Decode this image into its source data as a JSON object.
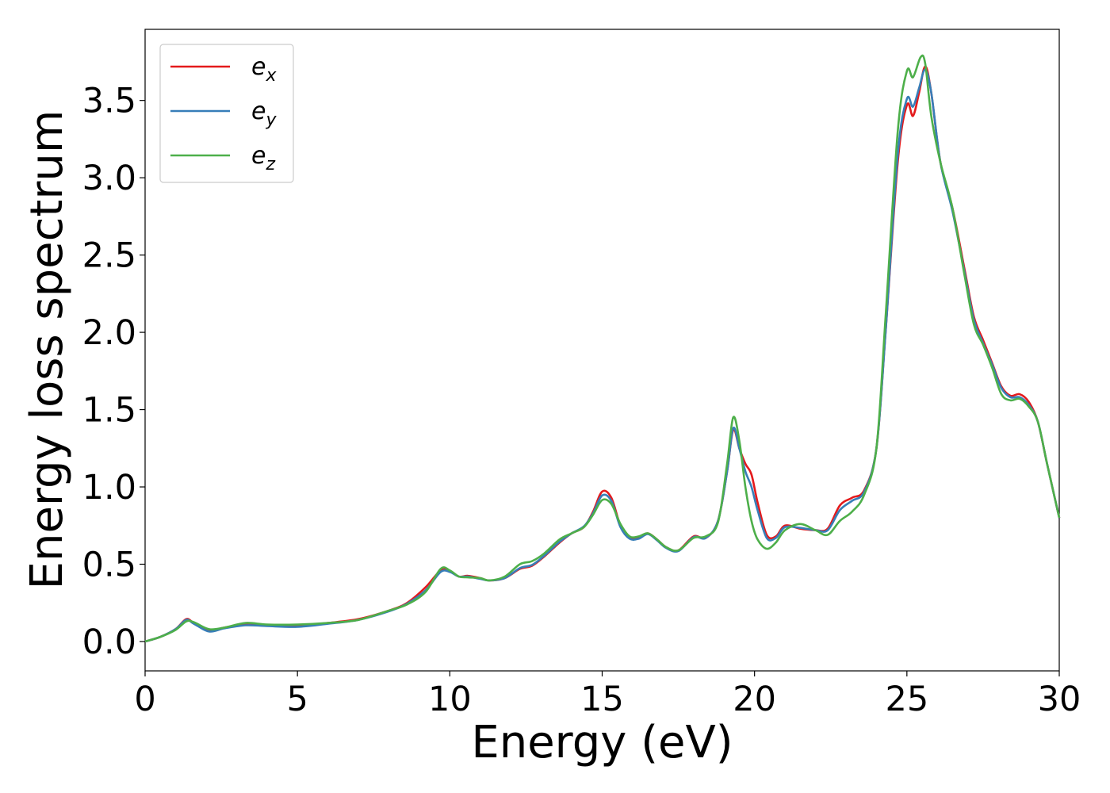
{
  "chart_data": {
    "type": "line",
    "title": "",
    "xlabel": "Energy (eV)",
    "ylabel": "Energy loss spectrum",
    "xlim": [
      0,
      30
    ],
    "ylim": [
      -0.19,
      3.96
    ],
    "xticks": [
      0,
      5,
      10,
      15,
      20,
      25,
      30
    ],
    "xtick_labels": [
      "0",
      "5",
      "10",
      "15",
      "20",
      "25",
      "30"
    ],
    "yticks": [
      0.0,
      0.5,
      1.0,
      1.5,
      2.0,
      2.5,
      3.0,
      3.5
    ],
    "ytick_labels": [
      "0.0",
      "0.5",
      "1.0",
      "1.5",
      "2.0",
      "2.5",
      "3.0",
      "3.5"
    ],
    "grid": false,
    "legend_position": "top-left",
    "series": [
      {
        "name": "e",
        "subscript": "x",
        "color": "#e41a1c",
        "points": [
          [
            0,
            0
          ],
          [
            0.5,
            0.03
          ],
          [
            1.0,
            0.08
          ],
          [
            1.35,
            0.145
          ],
          [
            1.6,
            0.12
          ],
          [
            2.1,
            0.07
          ],
          [
            2.6,
            0.09
          ],
          [
            3.3,
            0.11
          ],
          [
            4.0,
            0.105
          ],
          [
            5.0,
            0.1
          ],
          [
            6.0,
            0.12
          ],
          [
            7.0,
            0.145
          ],
          [
            8.0,
            0.2
          ],
          [
            8.6,
            0.25
          ],
          [
            9.2,
            0.35
          ],
          [
            9.7,
            0.46
          ],
          [
            10.0,
            0.455
          ],
          [
            10.3,
            0.42
          ],
          [
            10.6,
            0.425
          ],
          [
            11.0,
            0.41
          ],
          [
            11.3,
            0.395
          ],
          [
            11.8,
            0.41
          ],
          [
            12.3,
            0.47
          ],
          [
            12.7,
            0.49
          ],
          [
            13.1,
            0.55
          ],
          [
            13.6,
            0.64
          ],
          [
            14.0,
            0.7
          ],
          [
            14.4,
            0.74
          ],
          [
            14.7,
            0.84
          ],
          [
            15.0,
            0.97
          ],
          [
            15.3,
            0.93
          ],
          [
            15.6,
            0.75
          ],
          [
            15.9,
            0.67
          ],
          [
            16.2,
            0.67
          ],
          [
            16.5,
            0.7
          ],
          [
            16.8,
            0.66
          ],
          [
            17.1,
            0.61
          ],
          [
            17.5,
            0.59
          ],
          [
            18.0,
            0.68
          ],
          [
            18.4,
            0.67
          ],
          [
            18.8,
            0.78
          ],
          [
            19.1,
            1.1
          ],
          [
            19.3,
            1.37
          ],
          [
            19.5,
            1.25
          ],
          [
            19.7,
            1.15
          ],
          [
            19.9,
            1.08
          ],
          [
            20.1,
            0.9
          ],
          [
            20.4,
            0.69
          ],
          [
            20.7,
            0.68
          ],
          [
            21.0,
            0.75
          ],
          [
            21.5,
            0.73
          ],
          [
            22.0,
            0.72
          ],
          [
            22.4,
            0.73
          ],
          [
            22.8,
            0.88
          ],
          [
            23.2,
            0.93
          ],
          [
            23.6,
            0.98
          ],
          [
            24.0,
            1.25
          ],
          [
            24.3,
            2.0
          ],
          [
            24.7,
            3.1
          ],
          [
            25.0,
            3.47
          ],
          [
            25.2,
            3.4
          ],
          [
            25.4,
            3.55
          ],
          [
            25.6,
            3.72
          ],
          [
            25.8,
            3.55
          ],
          [
            26.1,
            3.1
          ],
          [
            26.5,
            2.8
          ],
          [
            26.9,
            2.4
          ],
          [
            27.2,
            2.1
          ],
          [
            27.5,
            1.95
          ],
          [
            27.8,
            1.8
          ],
          [
            28.1,
            1.65
          ],
          [
            28.4,
            1.59
          ],
          [
            28.7,
            1.6
          ],
          [
            29.0,
            1.55
          ],
          [
            29.3,
            1.42
          ],
          [
            29.6,
            1.15
          ],
          [
            30.0,
            0.8
          ]
        ]
      },
      {
        "name": "e",
        "subscript": "y",
        "color": "#377eb8",
        "points": [
          [
            0,
            0
          ],
          [
            0.5,
            0.03
          ],
          [
            1.0,
            0.08
          ],
          [
            1.35,
            0.14
          ],
          [
            1.6,
            0.115
          ],
          [
            2.1,
            0.065
          ],
          [
            2.6,
            0.085
          ],
          [
            3.3,
            0.105
          ],
          [
            4.0,
            0.1
          ],
          [
            5.0,
            0.095
          ],
          [
            6.0,
            0.115
          ],
          [
            7.0,
            0.14
          ],
          [
            8.0,
            0.195
          ],
          [
            8.6,
            0.245
          ],
          [
            9.2,
            0.33
          ],
          [
            9.7,
            0.45
          ],
          [
            10.0,
            0.45
          ],
          [
            10.3,
            0.42
          ],
          [
            10.6,
            0.42
          ],
          [
            11.0,
            0.405
          ],
          [
            11.3,
            0.395
          ],
          [
            11.8,
            0.41
          ],
          [
            12.3,
            0.475
          ],
          [
            12.7,
            0.495
          ],
          [
            13.1,
            0.555
          ],
          [
            13.6,
            0.645
          ],
          [
            14.0,
            0.7
          ],
          [
            14.4,
            0.745
          ],
          [
            14.7,
            0.83
          ],
          [
            15.0,
            0.945
          ],
          [
            15.3,
            0.91
          ],
          [
            15.6,
            0.74
          ],
          [
            15.9,
            0.665
          ],
          [
            16.2,
            0.665
          ],
          [
            16.5,
            0.695
          ],
          [
            16.8,
            0.655
          ],
          [
            17.1,
            0.605
          ],
          [
            17.5,
            0.585
          ],
          [
            18.0,
            0.675
          ],
          [
            18.4,
            0.67
          ],
          [
            18.8,
            0.78
          ],
          [
            19.1,
            1.1
          ],
          [
            19.3,
            1.38
          ],
          [
            19.5,
            1.25
          ],
          [
            19.7,
            1.1
          ],
          [
            19.9,
            1.0
          ],
          [
            20.1,
            0.85
          ],
          [
            20.4,
            0.67
          ],
          [
            20.7,
            0.67
          ],
          [
            21.0,
            0.74
          ],
          [
            21.5,
            0.735
          ],
          [
            22.0,
            0.72
          ],
          [
            22.4,
            0.72
          ],
          [
            22.8,
            0.85
          ],
          [
            23.2,
            0.91
          ],
          [
            23.6,
            0.97
          ],
          [
            24.0,
            1.25
          ],
          [
            24.3,
            2.0
          ],
          [
            24.7,
            3.15
          ],
          [
            25.0,
            3.51
          ],
          [
            25.2,
            3.46
          ],
          [
            25.4,
            3.58
          ],
          [
            25.6,
            3.7
          ],
          [
            25.8,
            3.55
          ],
          [
            26.1,
            3.1
          ],
          [
            26.5,
            2.78
          ],
          [
            26.9,
            2.38
          ],
          [
            27.2,
            2.08
          ],
          [
            27.5,
            1.93
          ],
          [
            27.8,
            1.79
          ],
          [
            28.1,
            1.64
          ],
          [
            28.4,
            1.58
          ],
          [
            28.7,
            1.58
          ],
          [
            29.0,
            1.53
          ],
          [
            29.3,
            1.42
          ],
          [
            29.6,
            1.15
          ],
          [
            30.0,
            0.8
          ]
        ]
      },
      {
        "name": "e",
        "subscript": "z",
        "color": "#4daf4a",
        "points": [
          [
            0,
            0
          ],
          [
            0.5,
            0.03
          ],
          [
            1.0,
            0.075
          ],
          [
            1.35,
            0.13
          ],
          [
            1.6,
            0.125
          ],
          [
            2.1,
            0.08
          ],
          [
            2.6,
            0.09
          ],
          [
            3.3,
            0.12
          ],
          [
            4.0,
            0.11
          ],
          [
            5.0,
            0.11
          ],
          [
            6.0,
            0.12
          ],
          [
            7.0,
            0.14
          ],
          [
            8.0,
            0.2
          ],
          [
            8.6,
            0.24
          ],
          [
            9.2,
            0.32
          ],
          [
            9.7,
            0.47
          ],
          [
            10.0,
            0.46
          ],
          [
            10.3,
            0.42
          ],
          [
            10.6,
            0.415
          ],
          [
            11.0,
            0.41
          ],
          [
            11.3,
            0.395
          ],
          [
            11.8,
            0.42
          ],
          [
            12.3,
            0.5
          ],
          [
            12.7,
            0.52
          ],
          [
            13.1,
            0.57
          ],
          [
            13.6,
            0.66
          ],
          [
            14.0,
            0.7
          ],
          [
            14.4,
            0.74
          ],
          [
            14.7,
            0.82
          ],
          [
            15.0,
            0.915
          ],
          [
            15.3,
            0.89
          ],
          [
            15.6,
            0.76
          ],
          [
            15.9,
            0.68
          ],
          [
            16.2,
            0.68
          ],
          [
            16.5,
            0.7
          ],
          [
            16.8,
            0.66
          ],
          [
            17.1,
            0.61
          ],
          [
            17.5,
            0.59
          ],
          [
            18.0,
            0.67
          ],
          [
            18.4,
            0.68
          ],
          [
            18.8,
            0.77
          ],
          [
            19.1,
            1.15
          ],
          [
            19.3,
            1.45
          ],
          [
            19.5,
            1.3
          ],
          [
            19.7,
            1.0
          ],
          [
            19.9,
            0.78
          ],
          [
            20.1,
            0.66
          ],
          [
            20.4,
            0.6
          ],
          [
            20.7,
            0.64
          ],
          [
            21.0,
            0.72
          ],
          [
            21.5,
            0.76
          ],
          [
            22.0,
            0.72
          ],
          [
            22.4,
            0.69
          ],
          [
            22.8,
            0.78
          ],
          [
            23.2,
            0.84
          ],
          [
            23.6,
            0.95
          ],
          [
            24.0,
            1.25
          ],
          [
            24.3,
            2.1
          ],
          [
            24.7,
            3.3
          ],
          [
            25.0,
            3.69
          ],
          [
            25.2,
            3.65
          ],
          [
            25.45,
            3.78
          ],
          [
            25.6,
            3.74
          ],
          [
            25.8,
            3.4
          ],
          [
            26.1,
            3.1
          ],
          [
            26.5,
            2.8
          ],
          [
            26.9,
            2.36
          ],
          [
            27.2,
            2.05
          ],
          [
            27.5,
            1.92
          ],
          [
            27.8,
            1.77
          ],
          [
            28.1,
            1.6
          ],
          [
            28.4,
            1.56
          ],
          [
            28.7,
            1.57
          ],
          [
            29.0,
            1.52
          ],
          [
            29.3,
            1.42
          ],
          [
            29.6,
            1.15
          ],
          [
            30.0,
            0.8
          ]
        ]
      }
    ]
  }
}
